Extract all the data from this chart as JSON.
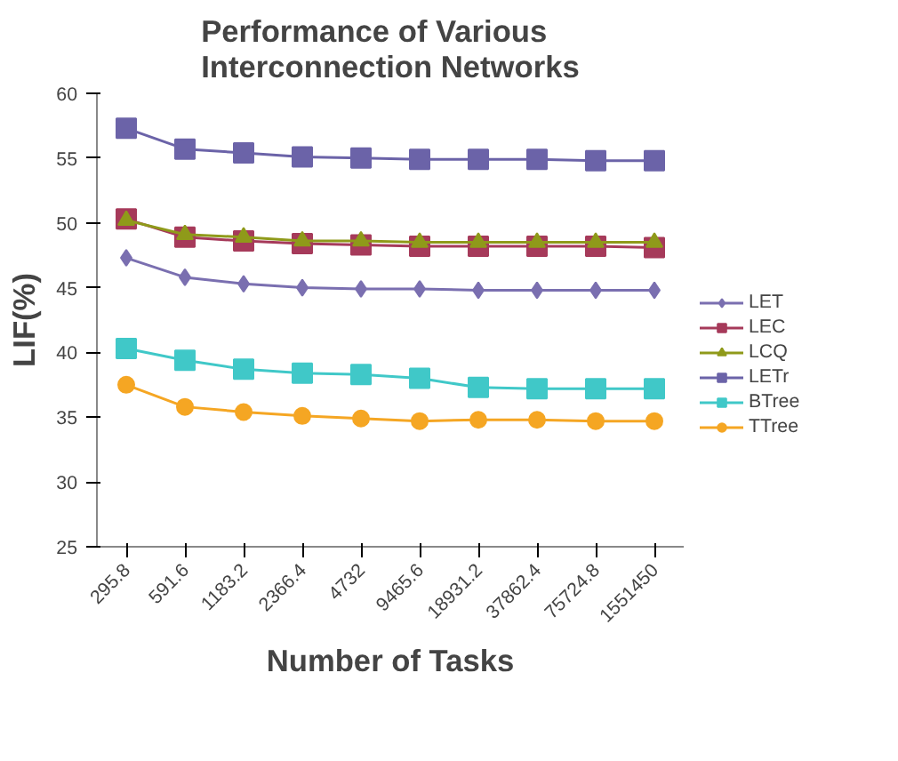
{
  "chart_data": {
    "type": "line",
    "title": "Performance of Various Interconnection Networks",
    "xlabel": "Number of Tasks",
    "ylabel": "LIF(%)",
    "categories": [
      "295.8",
      "591.6",
      "1183.2",
      "2366.4",
      "4732",
      "9465.6",
      "18931.2",
      "37862.4",
      "75724.8",
      "1551450"
    ],
    "ylim": [
      25,
      60
    ],
    "yticks": [
      25,
      30,
      35,
      40,
      45,
      50,
      55,
      60
    ],
    "grid": false,
    "legend": "right",
    "series": [
      {
        "name": "LET",
        "color": "#7a6fb0",
        "marker": "diamond",
        "values": [
          47.3,
          45.8,
          45.3,
          45.0,
          44.9,
          44.9,
          44.8,
          44.8,
          44.8,
          44.8
        ]
      },
      {
        "name": "LEC",
        "color": "#a63a5a",
        "marker": "square",
        "values": [
          50.3,
          48.9,
          48.6,
          48.4,
          48.3,
          48.2,
          48.2,
          48.2,
          48.2,
          48.1
        ]
      },
      {
        "name": "LCQ",
        "color": "#8f9a1a",
        "marker": "triangle",
        "values": [
          50.2,
          49.1,
          48.9,
          48.6,
          48.6,
          48.5,
          48.5,
          48.5,
          48.5,
          48.5
        ]
      },
      {
        "name": "LETr",
        "color": "#6b63a8",
        "marker": "square",
        "values": [
          57.3,
          55.7,
          55.4,
          55.1,
          55.0,
          54.9,
          54.9,
          54.9,
          54.8,
          54.8
        ]
      },
      {
        "name": "BTree",
        "color": "#40c8c8",
        "marker": "square",
        "values": [
          40.3,
          39.4,
          38.7,
          38.4,
          38.3,
          38.0,
          37.3,
          37.2,
          37.2,
          37.2
        ]
      },
      {
        "name": "TTree",
        "color": "#f5a623",
        "marker": "circle",
        "values": [
          37.5,
          35.8,
          35.4,
          35.1,
          34.9,
          34.7,
          34.8,
          34.8,
          34.7,
          34.7
        ]
      }
    ]
  }
}
